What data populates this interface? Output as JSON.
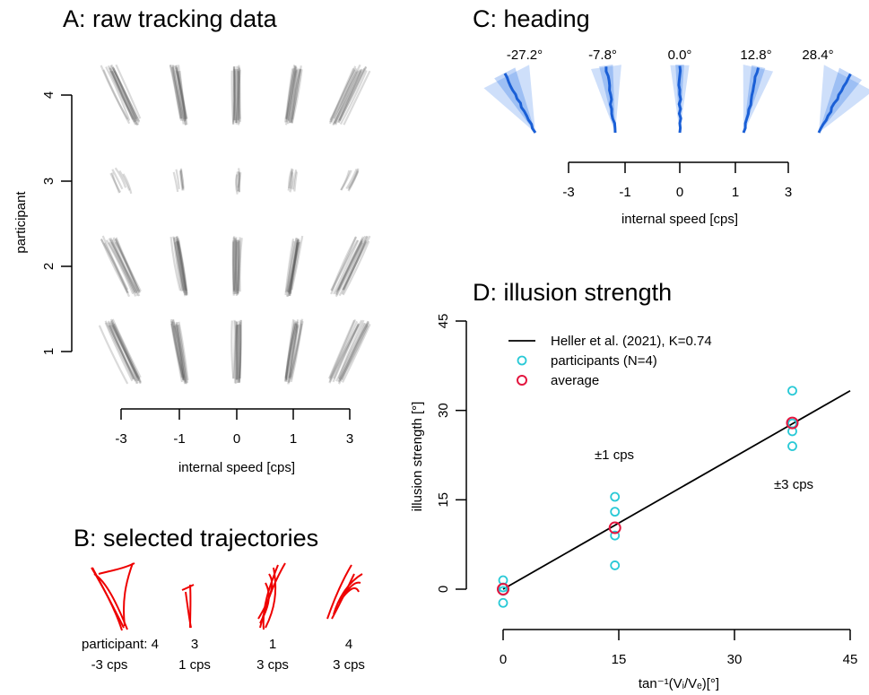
{
  "colors": {
    "raw_track": "#555555",
    "selected": "#ee0000",
    "heading_line": "#1a5fd6",
    "heading_fan": "#1f6de6",
    "model": "#000000",
    "participants": "#28c9d6",
    "average": "#e3163f"
  },
  "chart_data": [
    {
      "panel": "A",
      "type": "scatter",
      "title": "A: raw tracking data",
      "xlabel": "internal speed [cps]",
      "ylabel": "participant",
      "x_ticks": [
        "-3",
        "-1",
        "0",
        "1",
        "3"
      ],
      "y_ticks": [
        "1",
        "2",
        "3",
        "4"
      ],
      "internal_speeds": [
        -3,
        -1,
        0,
        1,
        3
      ],
      "participants": [
        1,
        2,
        3,
        4
      ]
    },
    {
      "panel": "B",
      "type": "line",
      "title": "B: selected trajectories",
      "labels": [
        {
          "top": "participant: 4",
          "bottom": "-3 cps"
        },
        {
          "top": "3",
          "bottom": "1 cps"
        },
        {
          "top": "1",
          "bottom": "3 cps"
        },
        {
          "top": "4",
          "bottom": "3 cps"
        }
      ]
    },
    {
      "panel": "C",
      "type": "line",
      "title": "C: heading",
      "xlabel": "internal speed [cps]",
      "x_ticks": [
        "-3",
        "-1",
        "0",
        "1",
        "3"
      ],
      "internal_speeds": [
        -3,
        -1,
        0,
        1,
        3
      ],
      "heading_labels": [
        "-27.2°",
        "-7.8°",
        "0.0°",
        "12.8°",
        "28.4°"
      ],
      "heading_deg": [
        -27.2,
        -7.8,
        0.0,
        12.8,
        28.4
      ]
    },
    {
      "panel": "D",
      "type": "scatter",
      "title": "D: illusion strength",
      "xlabel": "tan⁻¹(Vᵢ/Vₑ)[°]",
      "ylabel": "illusion strength [°]",
      "xlim": [
        0,
        45
      ],
      "ylim": [
        0,
        45
      ],
      "x_ticks": [
        "0",
        "15",
        "30",
        "45"
      ],
      "y_ticks": [
        "0",
        "15",
        "30",
        "45"
      ],
      "legend_position": "top-left",
      "legend": [
        "Heller et al. (2021), K=0.74",
        "participants (N=4)",
        "average"
      ],
      "model_line": {
        "x": [
          0,
          45
        ],
        "y": [
          0,
          33.3
        ]
      },
      "participants": {
        "x": [
          0,
          0,
          0,
          0,
          14.5,
          14.5,
          14.5,
          14.5,
          37.5,
          37.5,
          37.5,
          37.5
        ],
        "y": [
          1.5,
          0.3,
          -0.3,
          -2.3,
          15.5,
          13.0,
          9.0,
          4.0,
          33.3,
          27.8,
          26.5,
          24.0
        ]
      },
      "average": {
        "x": [
          0,
          14.5,
          37.5
        ],
        "y": [
          0.0,
          10.3,
          27.9
        ]
      },
      "annotations": [
        "±1 cps",
        "±3 cps"
      ]
    }
  ]
}
